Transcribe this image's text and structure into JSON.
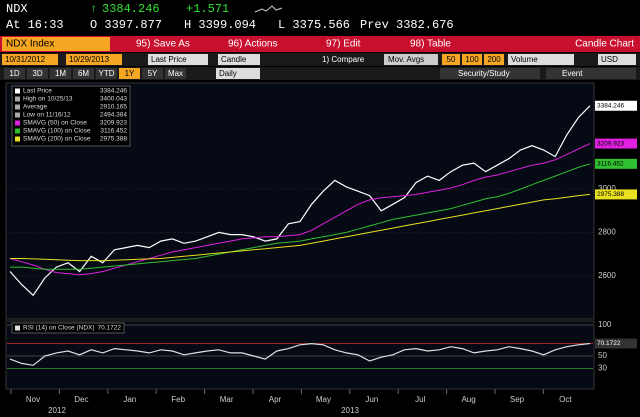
{
  "header": {
    "ticker": "NDX",
    "last": "3384.246",
    "change": "+1.571",
    "time": "At 16:33",
    "open": "O 3397.877",
    "high": "H 3399.094",
    "low": "L 3375.566",
    "prev": "Prev 3382.676"
  },
  "toolbar": {
    "security": "NDX Index",
    "buttons": [
      "95) Save As",
      "96) Actions",
      "97) Edit",
      "98) Table"
    ],
    "mode": "Candle Chart"
  },
  "controls": {
    "start": "10/31/2012",
    "end": "10/29/2013",
    "field": "Last Price",
    "style": "Candle",
    "compare": "1) Compare",
    "mov_avgs": "Mov. Avgs",
    "periods": [
      "50",
      "100",
      "200"
    ],
    "volume": "Volume",
    "currency": "USD",
    "ranges": [
      "1D",
      "3D",
      "1M",
      "6M",
      "YTD",
      "1Y",
      "5Y",
      "Max"
    ],
    "frequency": "Daily",
    "study": "Security/Study",
    "event": "Event"
  },
  "chart_data": [
    {
      "type": "line",
      "months": [
        "Nov",
        "Dec",
        "Jan",
        "Feb",
        "Mar",
        "Apr",
        "May",
        "Jun",
        "Jul",
        "Aug",
        "Sep",
        "Oct"
      ],
      "years": [
        "2012",
        "2013"
      ],
      "stats": [
        {
          "label": "High on 10/25/13",
          "value": 3400.043
        },
        {
          "label": "Average",
          "value": 2910.165
        },
        {
          "label": "Low on 11/16/12",
          "value": 2494.384
        }
      ],
      "series": [
        {
          "name": "Last Price",
          "color": "#ffffff",
          "values": [
            2620,
            2560,
            2510,
            2590,
            2640,
            2660,
            2620,
            2690,
            2660,
            2720,
            2730,
            2740,
            2730,
            2760,
            2770,
            2750,
            2760,
            2780,
            2800,
            2790,
            2790,
            2780,
            2760,
            2770,
            2840,
            2850,
            2930,
            2990,
            3040,
            3010,
            2990,
            2970,
            2900,
            2930,
            2960,
            3030,
            3060,
            3040,
            3080,
            3110,
            3120,
            3080,
            3110,
            3140,
            3180,
            3200,
            3180,
            3150,
            3250,
            3330,
            3384.246
          ]
        },
        {
          "name": "SMAVG (50) on Close",
          "color": "#e020e0",
          "values": [
            2680,
            2665,
            2650,
            2630,
            2615,
            2610,
            2605,
            2610,
            2620,
            2635,
            2650,
            2665,
            2680,
            2695,
            2710,
            2720,
            2730,
            2740,
            2750,
            2760,
            2770,
            2775,
            2780,
            2780,
            2785,
            2790,
            2810,
            2840,
            2870,
            2900,
            2930,
            2950,
            2960,
            2965,
            2970,
            2975,
            2985,
            2995,
            3005,
            3020,
            3040,
            3055,
            3065,
            3080,
            3095,
            3110,
            3120,
            3135,
            3160,
            3185,
            3209.923
          ]
        },
        {
          "name": "SMAVG (100) on Close",
          "color": "#30c030",
          "values": [
            2640,
            2640,
            2635,
            2630,
            2630,
            2630,
            2630,
            2635,
            2640,
            2645,
            2650,
            2655,
            2660,
            2665,
            2670,
            2675,
            2680,
            2690,
            2700,
            2710,
            2720,
            2730,
            2740,
            2750,
            2755,
            2760,
            2770,
            2780,
            2790,
            2800,
            2815,
            2830,
            2845,
            2860,
            2870,
            2880,
            2890,
            2900,
            2910,
            2925,
            2940,
            2955,
            2965,
            2980,
            3000,
            3020,
            3040,
            3060,
            3080,
            3100,
            3116.452
          ]
        },
        {
          "name": "SMAVG (200) on Close",
          "color": "#e8e020",
          "values": [
            2680,
            2680,
            2678,
            2676,
            2674,
            2672,
            2670,
            2670,
            2670,
            2672,
            2674,
            2676,
            2678,
            2680,
            2685,
            2690,
            2695,
            2700,
            2705,
            2710,
            2715,
            2720,
            2725,
            2730,
            2735,
            2740,
            2750,
            2760,
            2770,
            2780,
            2790,
            2800,
            2810,
            2820,
            2830,
            2840,
            2850,
            2860,
            2870,
            2880,
            2890,
            2900,
            2910,
            2920,
            2930,
            2940,
            2950,
            2955,
            2962,
            2970,
            2975.388
          ]
        }
      ],
      "ylim": [
        2410,
        3480
      ],
      "yticks": [
        2600,
        2800,
        3000
      ],
      "grid": true
    },
    {
      "type": "line",
      "series": [
        {
          "name": "RSI (14) on Close (NDX)",
          "color": "#e0e0e0",
          "values": [
            45,
            38,
            35,
            50,
            55,
            58,
            52,
            60,
            55,
            62,
            60,
            58,
            55,
            60,
            58,
            52,
            55,
            58,
            60,
            55,
            55,
            50,
            45,
            58,
            62,
            68,
            70,
            68,
            60,
            55,
            52,
            42,
            48,
            52,
            60,
            62,
            58,
            60,
            65,
            62,
            55,
            58,
            60,
            65,
            62,
            58,
            52,
            60,
            65,
            68,
            70.1722
          ]
        }
      ],
      "ylim": [
        0,
        100
      ],
      "yticks": [
        30,
        50,
        70,
        100
      ],
      "grid": true
    }
  ]
}
